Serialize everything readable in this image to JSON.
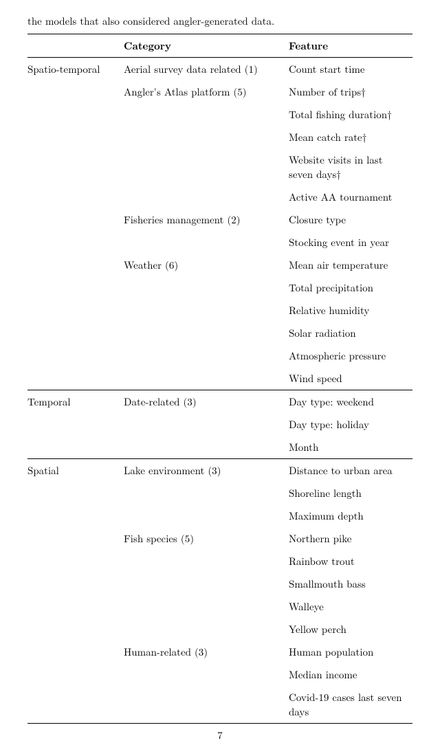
{
  "caption": "the models that also considered angler-generated data.",
  "header": {
    "group": "",
    "category": "Category",
    "feature": "Feature"
  },
  "rows": [
    {
      "group": "Spatio-temporal",
      "category": "Aerial survey data related (1)",
      "feature": "Count start time",
      "sep": true
    },
    {
      "group": "",
      "category": "Angler's Atlas platform (5)",
      "feature": "Number of trips†"
    },
    {
      "group": "",
      "category": "",
      "feature": "Total fishing duration†"
    },
    {
      "group": "",
      "category": "",
      "feature": "Mean catch rate†"
    },
    {
      "group": "",
      "category": "",
      "feature": "Website visits in last seven days†"
    },
    {
      "group": "",
      "category": "",
      "feature": "Active AA tournament"
    },
    {
      "group": "",
      "category": "Fisheries management (2)",
      "feature": "Closure type"
    },
    {
      "group": "",
      "category": "",
      "feature": "Stocking event in year"
    },
    {
      "group": "",
      "category": "Weather (6)",
      "feature": "Mean air temperature"
    },
    {
      "group": "",
      "category": "",
      "feature": "Total precipitation"
    },
    {
      "group": "",
      "category": "",
      "feature": "Relative humidity"
    },
    {
      "group": "",
      "category": "",
      "feature": "Solar radiation"
    },
    {
      "group": "",
      "category": "",
      "feature": "Atmospheric pressure"
    },
    {
      "group": "",
      "category": "",
      "feature": "Wind speed"
    },
    {
      "group": "Temporal",
      "category": "Date-related (3)",
      "feature": "Day type: weekend",
      "sep": true
    },
    {
      "group": "",
      "category": "",
      "feature": "Day type: holiday"
    },
    {
      "group": "",
      "category": "",
      "feature": "Month"
    },
    {
      "group": "Spatial",
      "category": "Lake environment (3)",
      "feature": "Distance to urban area",
      "sep": true
    },
    {
      "group": "",
      "category": "",
      "feature": "Shoreline length"
    },
    {
      "group": "",
      "category": "",
      "feature": "Maximum depth"
    },
    {
      "group": "",
      "category": "Fish species (5)",
      "feature": "Northern pike"
    },
    {
      "group": "",
      "category": "",
      "feature": "Rainbow trout"
    },
    {
      "group": "",
      "category": "",
      "feature": "Smallmouth bass"
    },
    {
      "group": "",
      "category": "",
      "feature": "Walleye"
    },
    {
      "group": "",
      "category": "",
      "feature": "Yellow perch"
    },
    {
      "group": "",
      "category": "Human-related (3)",
      "feature": "Human population"
    },
    {
      "group": "",
      "category": "",
      "feature": "Median income"
    },
    {
      "group": "",
      "category": "",
      "feature": "Covid-19 cases last seven days",
      "last": true
    }
  ],
  "page_number": "7"
}
